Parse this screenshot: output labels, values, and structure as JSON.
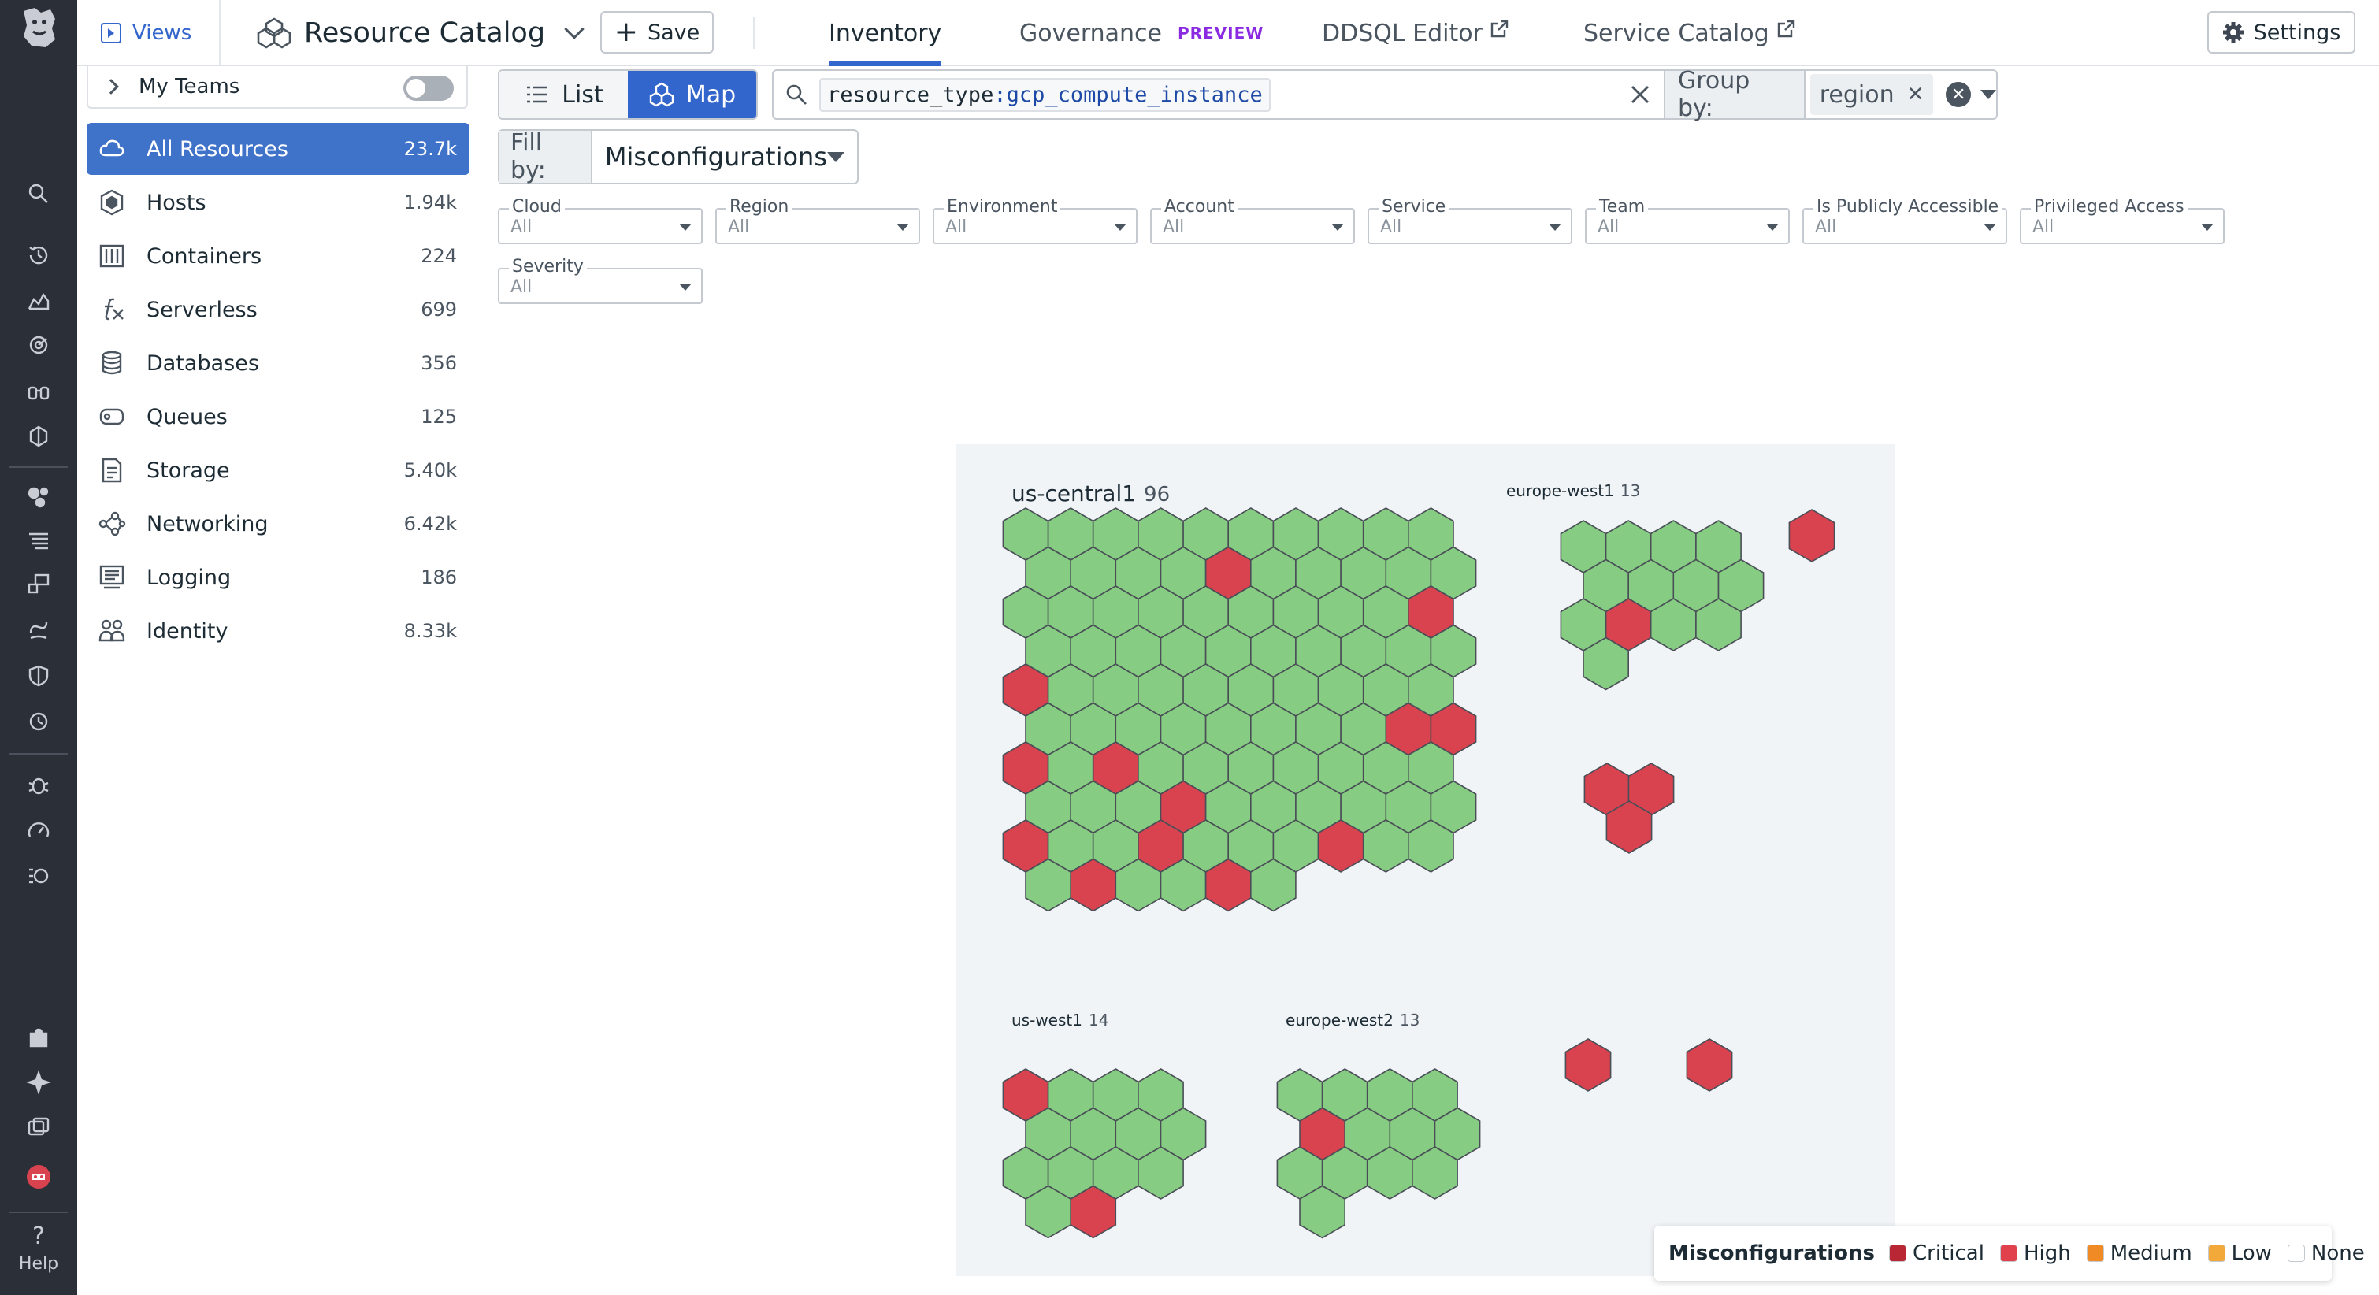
{
  "header": {
    "views_label": "Views",
    "title": "Resource Catalog",
    "save_label": "Save",
    "tabs": [
      {
        "label": "Inventory"
      },
      {
        "label": "Governance",
        "badge": "PREVIEW"
      },
      {
        "label": "DDSQL Editor"
      },
      {
        "label": "Service Catalog"
      }
    ],
    "settings_label": "Settings"
  },
  "appnav": {
    "help_label": "Help"
  },
  "sidebar": {
    "my_teams_label": "My Teams",
    "items": [
      {
        "label": "All Resources",
        "count": "23.7k",
        "icon": "cloud-icon"
      },
      {
        "label": "Hosts",
        "count": "1.94k",
        "icon": "hexagon-icon"
      },
      {
        "label": "Containers",
        "count": "224",
        "icon": "containers-icon"
      },
      {
        "label": "Serverless",
        "count": "699",
        "icon": "function-icon"
      },
      {
        "label": "Databases",
        "count": "356",
        "icon": "database-icon"
      },
      {
        "label": "Queues",
        "count": "125",
        "icon": "queue-icon"
      },
      {
        "label": "Storage",
        "count": "5.40k",
        "icon": "document-icon"
      },
      {
        "label": "Networking",
        "count": "6.42k",
        "icon": "network-icon"
      },
      {
        "label": "Logging",
        "count": "186",
        "icon": "logging-icon"
      },
      {
        "label": "Identity",
        "count": "8.33k",
        "icon": "people-icon"
      }
    ]
  },
  "toolbar": {
    "view_list_label": "List",
    "view_map_label": "Map",
    "search_key": "resource_type",
    "search_sep": ":",
    "search_value": "gcp_compute_instance",
    "group_by_label": "Group by:",
    "group_by_value": "region",
    "fill_by_label": "Fill by:",
    "fill_by_value": "Misconfigurations"
  },
  "filters": [
    {
      "label": "Cloud",
      "value": "All"
    },
    {
      "label": "Region",
      "value": "All"
    },
    {
      "label": "Environment",
      "value": "All"
    },
    {
      "label": "Account",
      "value": "All"
    },
    {
      "label": "Service",
      "value": "All"
    },
    {
      "label": "Team",
      "value": "All"
    },
    {
      "label": "Is Publicly Accessible",
      "value": "All"
    },
    {
      "label": "Privileged Access",
      "value": "All"
    },
    {
      "label": "Severity",
      "value": "All"
    }
  ],
  "map": {
    "colors": {
      "ok": "#86cc82",
      "high": "#d9424f",
      "stroke": "#4a4f57"
    },
    "groups": [
      {
        "name": "us-central1",
        "count": "96",
        "cols": 10,
        "total": 96,
        "high": [
          14,
          29,
          40,
          58,
          59,
          60,
          62,
          73,
          80,
          83,
          87,
          91,
          94
        ]
      },
      {
        "name": "europe-west1",
        "count": "13",
        "cols": 4,
        "total": 13,
        "high": [
          9
        ]
      },
      {
        "name": "us-west1",
        "count": "14",
        "cols": 4,
        "total": 14,
        "high": [
          0,
          13
        ]
      },
      {
        "name": "europe-west2",
        "count": "13",
        "cols": 4,
        "total": 13,
        "high": [
          4
        ]
      }
    ],
    "singles_high": 6
  },
  "legend": {
    "title": "Misconfigurations",
    "items": [
      {
        "label": "Critical",
        "color": "#b82733"
      },
      {
        "label": "High",
        "color": "#e0414d"
      },
      {
        "label": "Medium",
        "color": "#f08a24"
      },
      {
        "label": "Low",
        "color": "#f2a93a"
      },
      {
        "label": "None",
        "color": "#ffffff"
      }
    ]
  }
}
